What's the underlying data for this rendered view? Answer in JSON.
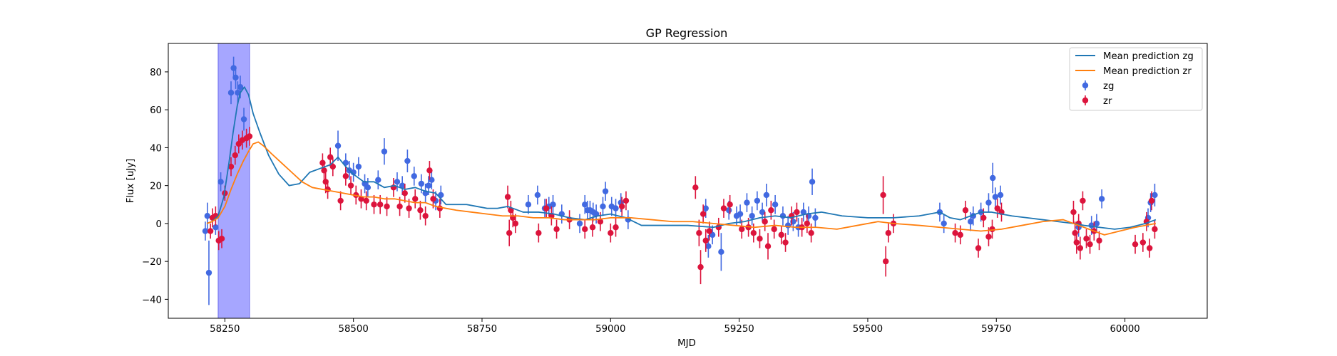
{
  "chart_data": {
    "type": "scatter",
    "title": "GP Regression",
    "xlabel": "MJD",
    "ylabel": "Flux [uJy]",
    "xlim": [
      58140,
      60160
    ],
    "ylim": [
      -50,
      95
    ],
    "xticks": [
      58250,
      58500,
      58750,
      59000,
      59250,
      59500,
      59750,
      60000
    ],
    "yticks": [
      -40,
      -20,
      0,
      20,
      40,
      60,
      80
    ],
    "grid": false,
    "legend_position": "top-right",
    "highlight_span": {
      "x": [
        58237,
        58298
      ],
      "color": "#a6a6ff"
    },
    "lines": [
      {
        "name": "Mean prediction zg",
        "color": "#1f77b4",
        "x": [
          58215,
          58225,
          58237,
          58248,
          58258,
          58266,
          58274,
          58280,
          58288,
          58296,
          58305,
          58318,
          58335,
          58355,
          58375,
          58395,
          58415,
          58435,
          58455,
          58470,
          58485,
          58500,
          58520,
          58540,
          58560,
          58580,
          58600,
          58620,
          58640,
          58660,
          58680,
          58700,
          58720,
          58740,
          58760,
          58780,
          58800,
          58830,
          58860,
          58890,
          58920,
          58950,
          58975,
          59000,
          59030,
          59060,
          59100,
          59150,
          59200,
          59230,
          59260,
          59290,
          59320,
          59350,
          59380,
          59410,
          59450,
          59500,
          59550,
          59600,
          59640,
          59660,
          59680,
          59700,
          59720,
          59740,
          59760,
          59780,
          59810,
          59840,
          59870,
          59900,
          59920,
          59950,
          59980,
          60010,
          60040,
          60060
        ],
        "y": [
          0,
          1,
          4,
          14,
          32,
          48,
          62,
          69,
          72,
          68,
          58,
          48,
          36,
          26,
          20,
          21,
          27,
          29,
          31,
          35,
          30,
          26,
          22,
          22,
          19,
          20,
          18,
          19,
          17,
          16,
          10,
          10,
          10,
          9,
          8,
          8,
          9,
          6,
          6,
          5,
          3,
          2,
          4,
          5,
          3,
          -1,
          -1,
          -1,
          -2,
          0,
          1,
          3,
          4,
          3,
          5,
          6,
          4,
          3,
          3,
          4,
          6,
          3,
          2,
          4,
          6,
          6,
          5,
          4,
          3,
          2,
          1,
          0,
          -1,
          -2,
          -3,
          -2,
          0,
          2
        ]
      },
      {
        "name": "Mean prediction zr",
        "color": "#ff7f0e",
        "x": [
          58215,
          58225,
          58237,
          58250,
          58262,
          58274,
          58286,
          58296,
          58305,
          58315,
          58325,
          58340,
          58360,
          58380,
          58400,
          58420,
          58440,
          58460,
          58480,
          58500,
          58520,
          58540,
          58560,
          58580,
          58600,
          58620,
          58640,
          58660,
          58680,
          58700,
          58730,
          58760,
          58790,
          58820,
          58850,
          58880,
          58910,
          58940,
          58970,
          59000,
          59040,
          59080,
          59120,
          59160,
          59200,
          59240,
          59280,
          59320,
          59360,
          59400,
          59440,
          59480,
          59520,
          59550,
          59600,
          59640,
          59680,
          59720,
          59760,
          59800,
          59840,
          59880,
          59910,
          59940,
          59960,
          59990,
          60020,
          60060
        ],
        "y": [
          0,
          1,
          3,
          9,
          18,
          26,
          33,
          38,
          42,
          43,
          41,
          37,
          32,
          27,
          22,
          19,
          18,
          17,
          16,
          15,
          14,
          14,
          13,
          13,
          12,
          11,
          11,
          9,
          8,
          7,
          6,
          5,
          4,
          4,
          3,
          3,
          2,
          2,
          2,
          3,
          3,
          2,
          1,
          1,
          0,
          -1,
          -2,
          -1,
          -2,
          -2,
          -3,
          -1,
          1,
          0,
          -1,
          -2,
          -3,
          -4,
          -3,
          -1,
          1,
          2,
          -1,
          -4,
          -6,
          -4,
          -2,
          0
        ]
      }
    ],
    "series": [
      {
        "name": "zg",
        "color": "#4169e1",
        "points": [
          [
            58212,
            -4,
            5
          ],
          [
            58216,
            4,
            7
          ],
          [
            58219,
            -26,
            17
          ],
          [
            58232,
            -2,
            4
          ],
          [
            58242,
            22,
            5
          ],
          [
            58262,
            69,
            6
          ],
          [
            58267,
            82,
            6
          ],
          [
            58271,
            77,
            6
          ],
          [
            58275,
            69,
            6
          ],
          [
            58280,
            72,
            6
          ],
          [
            58287,
            55,
            6
          ],
          [
            58470,
            41,
            8
          ],
          [
            58485,
            32,
            5
          ],
          [
            58492,
            28,
            5
          ],
          [
            58500,
            27,
            5
          ],
          [
            58510,
            30,
            5
          ],
          [
            58522,
            21,
            5
          ],
          [
            58528,
            19,
            5
          ],
          [
            58548,
            23,
            5
          ],
          [
            58560,
            38,
            7
          ],
          [
            58585,
            22,
            5
          ],
          [
            58595,
            20,
            5
          ],
          [
            58605,
            33,
            6
          ],
          [
            58618,
            25,
            5
          ],
          [
            58632,
            21,
            5
          ],
          [
            58640,
            16,
            5
          ],
          [
            58646,
            20,
            5
          ],
          [
            58652,
            23,
            5
          ],
          [
            58660,
            12,
            5
          ],
          [
            58670,
            15,
            5
          ],
          [
            58840,
            10,
            5
          ],
          [
            58858,
            15,
            5
          ],
          [
            58872,
            8,
            5
          ],
          [
            58880,
            9,
            5
          ],
          [
            58888,
            10,
            5
          ],
          [
            58905,
            5,
            5
          ],
          [
            58940,
            0,
            5
          ],
          [
            58950,
            10,
            5
          ],
          [
            58955,
            7,
            5
          ],
          [
            58960,
            7,
            5
          ],
          [
            58966,
            6,
            5
          ],
          [
            58972,
            5,
            5
          ],
          [
            58985,
            9,
            5
          ],
          [
            58990,
            17,
            5
          ],
          [
            59002,
            9,
            5
          ],
          [
            59010,
            8,
            5
          ],
          [
            59020,
            11,
            5
          ],
          [
            59034,
            2,
            5
          ],
          [
            59185,
            8,
            5
          ],
          [
            59190,
            -12,
            6
          ],
          [
            59198,
            -6,
            5
          ],
          [
            59215,
            -15,
            10
          ],
          [
            59230,
            7,
            5
          ],
          [
            59245,
            4,
            5
          ],
          [
            59252,
            5,
            5
          ],
          [
            59265,
            11,
            5
          ],
          [
            59275,
            4,
            5
          ],
          [
            59285,
            12,
            5
          ],
          [
            59295,
            6,
            5
          ],
          [
            59303,
            15,
            6
          ],
          [
            59320,
            10,
            5
          ],
          [
            59335,
            4,
            5
          ],
          [
            59345,
            -1,
            5
          ],
          [
            59355,
            1,
            5
          ],
          [
            59365,
            -2,
            5
          ],
          [
            59375,
            6,
            5
          ],
          [
            59385,
            4,
            5
          ],
          [
            59392,
            22,
            7
          ],
          [
            59398,
            3,
            5
          ],
          [
            59640,
            6,
            5
          ],
          [
            59648,
            0,
            5
          ],
          [
            59700,
            1,
            5
          ],
          [
            59705,
            4,
            5
          ],
          [
            59720,
            6,
            5
          ],
          [
            59735,
            11,
            5
          ],
          [
            59743,
            24,
            8
          ],
          [
            59748,
            14,
            5
          ],
          [
            59758,
            15,
            5
          ],
          [
            59910,
            -2,
            5
          ],
          [
            59935,
            -1,
            5
          ],
          [
            59945,
            0,
            5
          ],
          [
            59955,
            13,
            5
          ],
          [
            60045,
            3,
            5
          ],
          [
            60050,
            11,
            5
          ],
          [
            60058,
            15,
            6
          ]
        ]
      },
      {
        "name": "zr",
        "color": "#dc143c",
        "points": [
          [
            58222,
            -4,
            4
          ],
          [
            58226,
            3,
            5
          ],
          [
            58232,
            4,
            5
          ],
          [
            58238,
            -9,
            5
          ],
          [
            58244,
            -8,
            5
          ],
          [
            58250,
            16,
            4
          ],
          [
            58262,
            30,
            5
          ],
          [
            58270,
            36,
            5
          ],
          [
            58277,
            42,
            5
          ],
          [
            58284,
            44,
            5
          ],
          [
            58292,
            45,
            5
          ],
          [
            58298,
            46,
            5
          ],
          [
            58440,
            32,
            5
          ],
          [
            58443,
            28,
            5
          ],
          [
            58446,
            22,
            6
          ],
          [
            58450,
            18,
            5
          ],
          [
            58455,
            35,
            5
          ],
          [
            58460,
            30,
            5
          ],
          [
            58475,
            12,
            5
          ],
          [
            58485,
            25,
            5
          ],
          [
            58495,
            20,
            5
          ],
          [
            58505,
            15,
            5
          ],
          [
            58515,
            13,
            5
          ],
          [
            58525,
            12,
            5
          ],
          [
            58540,
            10,
            5
          ],
          [
            58552,
            10,
            5
          ],
          [
            58565,
            9,
            5
          ],
          [
            58578,
            19,
            5
          ],
          [
            58590,
            9,
            5
          ],
          [
            58600,
            16,
            5
          ],
          [
            58608,
            8,
            5
          ],
          [
            58620,
            13,
            5
          ],
          [
            58630,
            7,
            5
          ],
          [
            58640,
            4,
            5
          ],
          [
            58648,
            28,
            5
          ],
          [
            58655,
            13,
            5
          ],
          [
            58668,
            8,
            5
          ],
          [
            58800,
            14,
            6
          ],
          [
            58803,
            -5,
            7
          ],
          [
            58806,
            7,
            5
          ],
          [
            58810,
            3,
            5
          ],
          [
            58815,
            0,
            5
          ],
          [
            58860,
            -5,
            5
          ],
          [
            58875,
            8,
            5
          ],
          [
            58885,
            4,
            5
          ],
          [
            58895,
            -3,
            5
          ],
          [
            58920,
            2,
            5
          ],
          [
            58950,
            -3,
            5
          ],
          [
            58965,
            -2,
            5
          ],
          [
            58980,
            1,
            5
          ],
          [
            59000,
            -5,
            5
          ],
          [
            59010,
            -2,
            5
          ],
          [
            59022,
            9,
            5
          ],
          [
            59030,
            12,
            5
          ],
          [
            59165,
            19,
            6
          ],
          [
            59172,
            -5,
            7
          ],
          [
            59175,
            -23,
            9
          ],
          [
            59180,
            5,
            5
          ],
          [
            59185,
            -9,
            6
          ],
          [
            59192,
            -4,
            5
          ],
          [
            59210,
            -2,
            5
          ],
          [
            59220,
            8,
            5
          ],
          [
            59232,
            10,
            5
          ],
          [
            59255,
            -3,
            5
          ],
          [
            59268,
            -2,
            5
          ],
          [
            59278,
            -5,
            5
          ],
          [
            59290,
            -8,
            5
          ],
          [
            59300,
            1,
            5
          ],
          [
            59306,
            -12,
            7
          ],
          [
            59312,
            7,
            5
          ],
          [
            59318,
            -3,
            5
          ],
          [
            59332,
            -6,
            5
          ],
          [
            59340,
            -10,
            5
          ],
          [
            59352,
            4,
            5
          ],
          [
            59362,
            6,
            5
          ],
          [
            59372,
            -2,
            5
          ],
          [
            59382,
            0,
            5
          ],
          [
            59390,
            -5,
            5
          ],
          [
            59530,
            15,
            10
          ],
          [
            59535,
            -20,
            8
          ],
          [
            59540,
            -5,
            5
          ],
          [
            59550,
            0,
            5
          ],
          [
            59670,
            -5,
            5
          ],
          [
            59680,
            -6,
            5
          ],
          [
            59690,
            7,
            5
          ],
          [
            59715,
            -13,
            5
          ],
          [
            59725,
            3,
            5
          ],
          [
            59735,
            -7,
            5
          ],
          [
            59742,
            -3,
            5
          ],
          [
            59752,
            8,
            5
          ],
          [
            59760,
            6,
            5
          ],
          [
            59900,
            6,
            6
          ],
          [
            59903,
            -5,
            6
          ],
          [
            59906,
            -10,
            6
          ],
          [
            59910,
            0,
            5
          ],
          [
            59913,
            -13,
            6
          ],
          [
            59918,
            12,
            5
          ],
          [
            59925,
            -8,
            5
          ],
          [
            59932,
            -11,
            5
          ],
          [
            59940,
            -4,
            5
          ],
          [
            59950,
            -9,
            5
          ],
          [
            60020,
            -11,
            5
          ],
          [
            60035,
            -10,
            5
          ],
          [
            60042,
            1,
            5
          ],
          [
            60048,
            -13,
            5
          ],
          [
            60052,
            12,
            5
          ],
          [
            60058,
            -3,
            5
          ]
        ]
      }
    ]
  }
}
